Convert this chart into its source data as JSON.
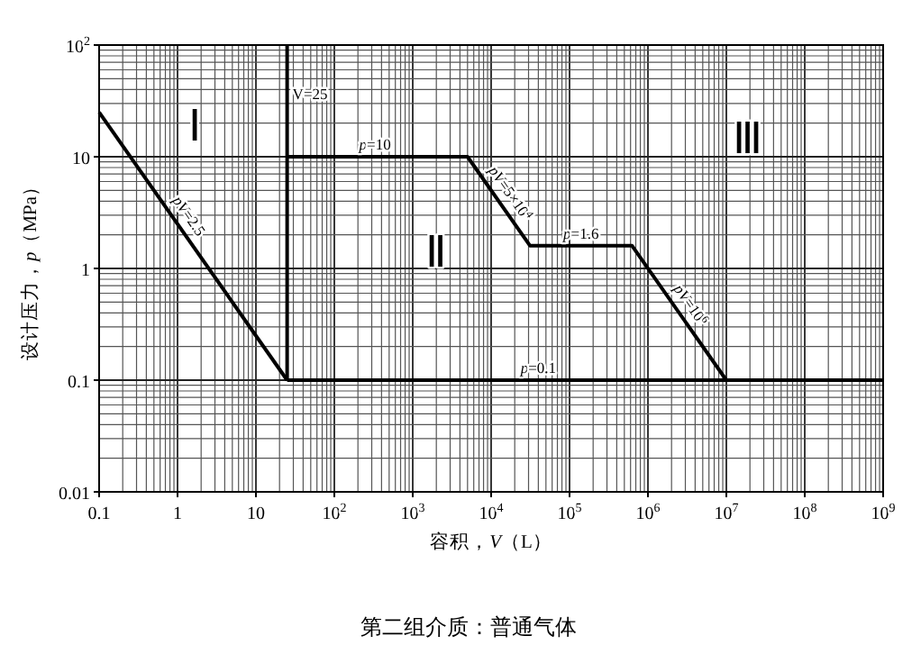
{
  "chart_data": {
    "type": "line",
    "xlabel": "容积，*V*（L）",
    "ylabel": "设计压力，*p*（MPa）",
    "log": "xy",
    "grid": true,
    "xlim": [
      0.1,
      1000000000
    ],
    "ylim": [
      0.01,
      100
    ],
    "xticks": [
      0.1,
      1,
      10,
      {
        "value": 100,
        "label": "10$^{2}$"
      },
      {
        "value": 1000,
        "label": "10$^{3}$"
      },
      {
        "value": 10000,
        "label": "10$^{4}$"
      },
      {
        "value": 100000,
        "label": "10$^{5}$"
      },
      {
        "value": 1000000,
        "label": "10$^{6}$"
      },
      {
        "value": 10000000,
        "label": "10$^{7}$"
      },
      {
        "value": 100000000,
        "label": "10$^{8}$"
      },
      {
        "value": 1000000000,
        "label": "10$^{9}$"
      }
    ],
    "yticks": [
      0.01,
      0.1,
      1,
      10,
      {
        "value": 100,
        "label": "10$^{2}$"
      }
    ],
    "series": [
      {
        "color": "#000000",
        "x": [
          0.1,
          25
        ],
        "values": [
          25,
          0.1
        ]
      },
      {
        "color": "#000000",
        "x": [
          25,
          25
        ],
        "values": [
          0.1,
          100
        ]
      },
      {
        "color": "#000000",
        "x": [
          25,
          5000,
          31250,
          625000,
          10000000
        ],
        "values": [
          10,
          10,
          1.6,
          1.6,
          0.1
        ]
      },
      {
        "color": "#000000",
        "x": [
          25,
          1000000000
        ],
        "values": [
          0.1,
          0.1
        ]
      }
    ],
    "annotations": [
      "Ⅰ",
      "Ⅱ",
      "Ⅲ",
      {
        "text": "V=25",
        "x": 25,
        "y": 37
      },
      {
        "text": "*p*=10",
        "x": 330,
        "y": 10
      },
      {
        "text": "*pV*=2.5",
        "x": 1,
        "y": 2.5
      },
      {
        "text": "*pV*=5×10$^{4}$",
        "x": 12500,
        "y": 4
      },
      {
        "text": "*p*=1.6",
        "x": 140000,
        "y": 1.6
      },
      {
        "text": "*pV*=10$^{6}$",
        "x": 2500000,
        "y": 0.4
      },
      {
        "text": "*p*=0.1",
        "x": 40000,
        "y": 0.1
      },
      "第二组介质：普通气体"
    ]
  }
}
